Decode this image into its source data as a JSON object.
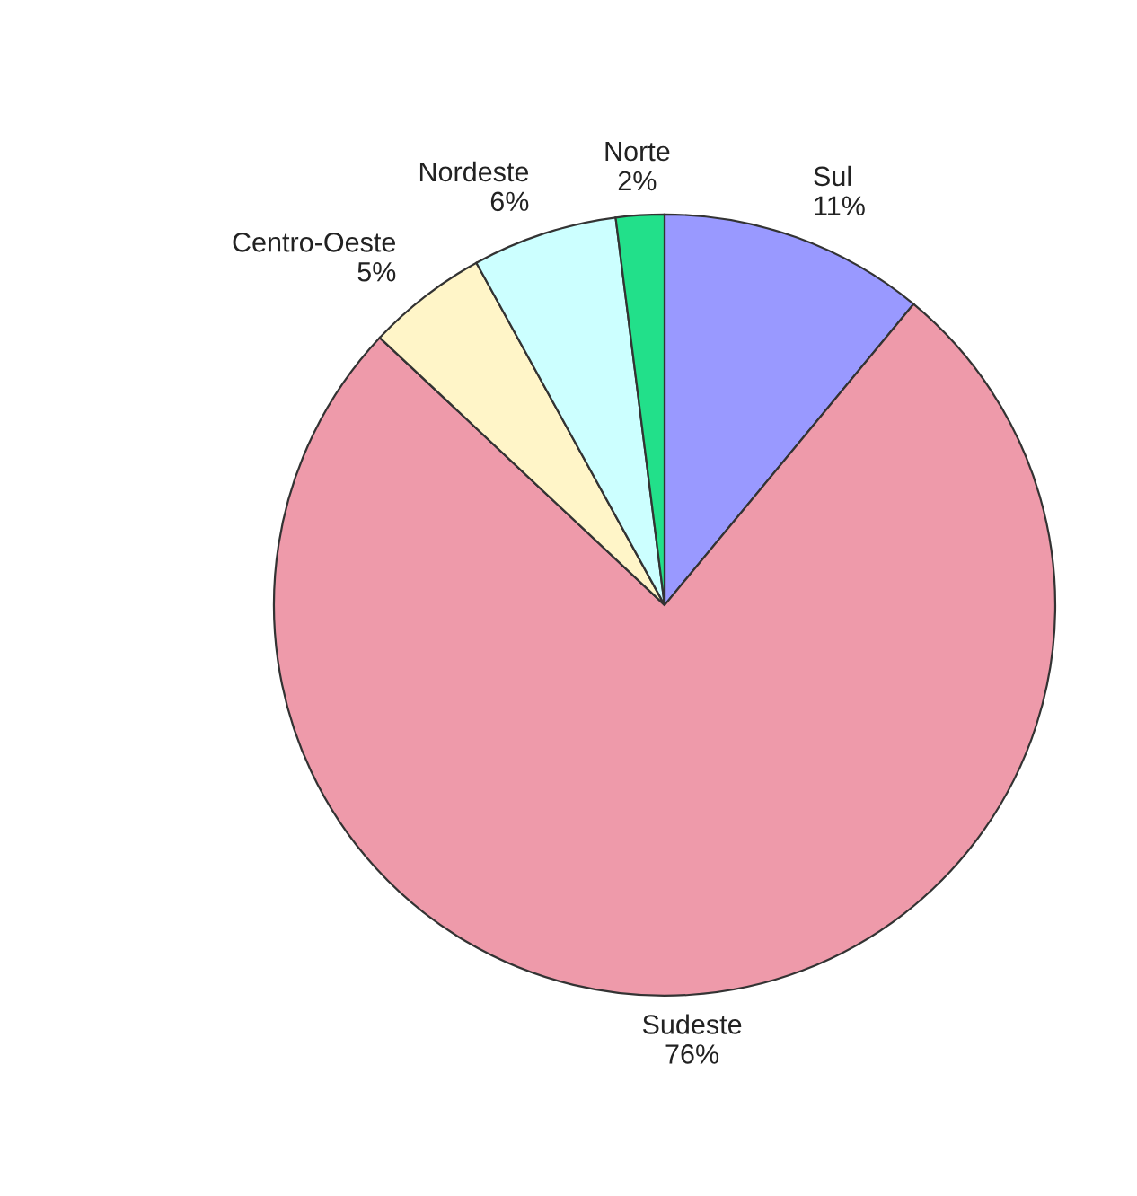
{
  "chart_data": {
    "type": "pie",
    "categories": [
      "Sul",
      "Sudeste",
      "Centro-Oeste",
      "Nordeste",
      "Norte"
    ],
    "values": [
      11,
      76,
      5,
      6,
      2
    ],
    "colors": [
      "#9999ff",
      "#ee9aaa",
      "#fff5c8",
      "#ccffff",
      "#22e08a"
    ],
    "value_labels": [
      "11%",
      "76%",
      "5%",
      "6%",
      "2%"
    ]
  }
}
